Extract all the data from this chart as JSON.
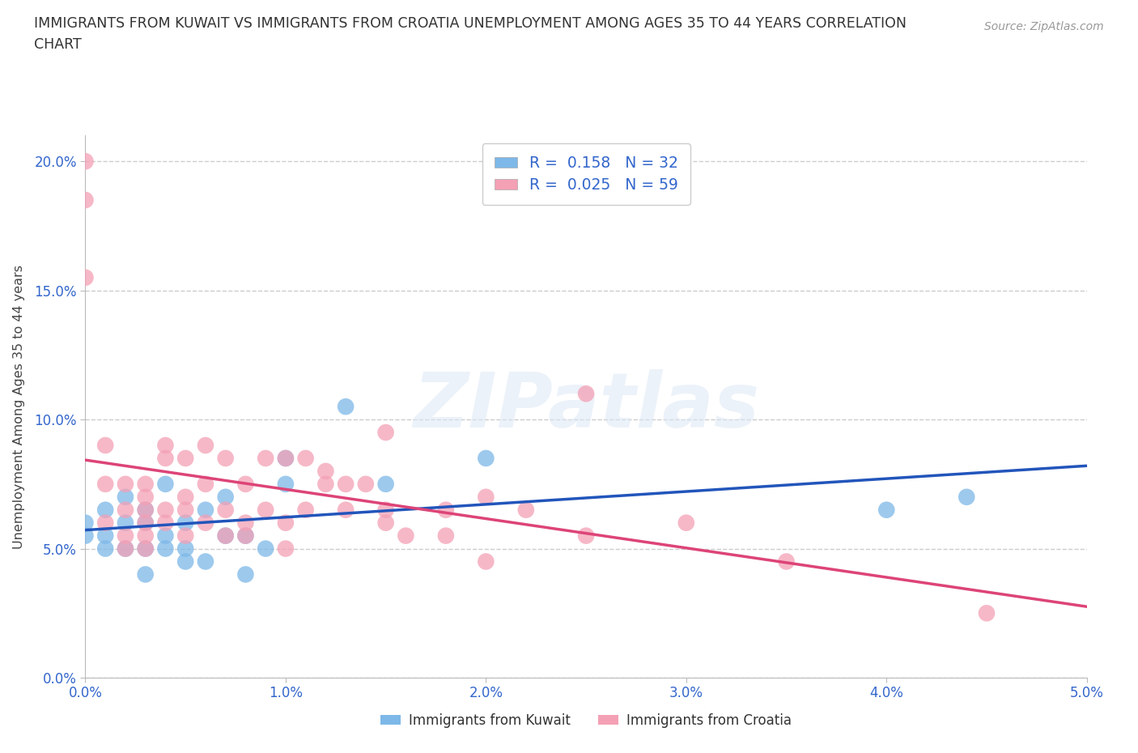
{
  "title_line1": "IMMIGRANTS FROM KUWAIT VS IMMIGRANTS FROM CROATIA UNEMPLOYMENT AMONG AGES 35 TO 44 YEARS CORRELATION",
  "title_line2": "CHART",
  "source": "Source: ZipAtlas.com",
  "ylabel": "Unemployment Among Ages 35 to 44 years",
  "watermark_text": "ZIPatlas",
  "xlim": [
    0.0,
    0.05
  ],
  "ylim": [
    0.0,
    0.21
  ],
  "xticks": [
    0.0,
    0.01,
    0.02,
    0.03,
    0.04,
    0.05
  ],
  "yticks": [
    0.0,
    0.05,
    0.1,
    0.15,
    0.2
  ],
  "kuwait_R": 0.158,
  "kuwait_N": 32,
  "croatia_R": 0.025,
  "croatia_N": 59,
  "kuwait_color": "#7db8e8",
  "croatia_color": "#f4a0b5",
  "kuwait_line_color": "#2255bb",
  "croatia_line_color": "#dd4477",
  "tick_color": "#3366cc",
  "title_color": "#333333",
  "source_color": "#999999",
  "legend_text_color": "#3366cc",
  "bottom_legend_color": "#333333",
  "kuwait_x": [
    0.0,
    0.0,
    0.001,
    0.001,
    0.001,
    0.002,
    0.002,
    0.002,
    0.003,
    0.003,
    0.003,
    0.003,
    0.004,
    0.004,
    0.004,
    0.005,
    0.005,
    0.005,
    0.006,
    0.006,
    0.007,
    0.007,
    0.008,
    0.008,
    0.009,
    0.01,
    0.01,
    0.013,
    0.015,
    0.02,
    0.04,
    0.044
  ],
  "kuwait_y": [
    0.06,
    0.055,
    0.055,
    0.065,
    0.05,
    0.07,
    0.06,
    0.05,
    0.06,
    0.05,
    0.04,
    0.065,
    0.055,
    0.075,
    0.05,
    0.06,
    0.045,
    0.05,
    0.065,
    0.045,
    0.055,
    0.07,
    0.04,
    0.055,
    0.05,
    0.085,
    0.075,
    0.105,
    0.075,
    0.085,
    0.065,
    0.07
  ],
  "croatia_x": [
    0.0,
    0.0,
    0.0,
    0.001,
    0.001,
    0.001,
    0.002,
    0.002,
    0.002,
    0.002,
    0.003,
    0.003,
    0.003,
    0.003,
    0.003,
    0.003,
    0.004,
    0.004,
    0.004,
    0.004,
    0.005,
    0.005,
    0.005,
    0.005,
    0.006,
    0.006,
    0.006,
    0.007,
    0.007,
    0.007,
    0.008,
    0.008,
    0.008,
    0.009,
    0.009,
    0.01,
    0.01,
    0.01,
    0.011,
    0.011,
    0.012,
    0.012,
    0.013,
    0.013,
    0.014,
    0.015,
    0.015,
    0.015,
    0.016,
    0.018,
    0.018,
    0.02,
    0.02,
    0.022,
    0.025,
    0.025,
    0.03,
    0.035,
    0.045
  ],
  "croatia_y": [
    0.2,
    0.185,
    0.155,
    0.09,
    0.075,
    0.06,
    0.065,
    0.075,
    0.055,
    0.05,
    0.065,
    0.075,
    0.07,
    0.06,
    0.055,
    0.05,
    0.085,
    0.09,
    0.065,
    0.06,
    0.07,
    0.065,
    0.055,
    0.085,
    0.09,
    0.06,
    0.075,
    0.065,
    0.055,
    0.085,
    0.055,
    0.06,
    0.075,
    0.065,
    0.085,
    0.085,
    0.06,
    0.05,
    0.085,
    0.065,
    0.08,
    0.075,
    0.075,
    0.065,
    0.075,
    0.065,
    0.06,
    0.095,
    0.055,
    0.065,
    0.055,
    0.07,
    0.045,
    0.065,
    0.055,
    0.11,
    0.06,
    0.045,
    0.025
  ]
}
